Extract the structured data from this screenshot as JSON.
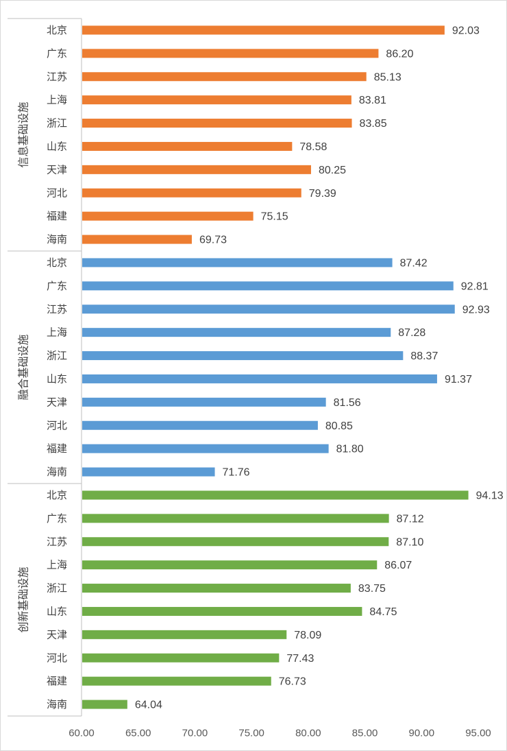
{
  "chart_data": {
    "type": "bar",
    "orientation": "horizontal",
    "xlim": [
      60,
      95
    ],
    "x_ticks": [
      "60.00",
      "65.00",
      "70.00",
      "75.00",
      "80.00",
      "85.00",
      "90.00",
      "95.00"
    ],
    "grid": false,
    "groups": [
      {
        "name": "信息基础设施",
        "color": "#ED7D31",
        "categories": [
          "北京",
          "广东",
          "江苏",
          "上海",
          "浙江",
          "山东",
          "天津",
          "河北",
          "福建",
          "海南"
        ],
        "values": [
          92.03,
          86.2,
          85.13,
          83.81,
          83.85,
          78.58,
          80.25,
          79.39,
          75.15,
          69.73
        ],
        "value_labels": [
          "92.03",
          "86.20",
          "85.13",
          "83.81",
          "83.85",
          "78.58",
          "80.25",
          "79.39",
          "75.15",
          "69.73"
        ]
      },
      {
        "name": "融合基础设施",
        "color": "#5B9BD5",
        "categories": [
          "北京",
          "广东",
          "江苏",
          "上海",
          "浙江",
          "山东",
          "天津",
          "河北",
          "福建",
          "海南"
        ],
        "values": [
          87.42,
          92.81,
          92.93,
          87.28,
          88.37,
          91.37,
          81.56,
          80.85,
          81.8,
          71.76
        ],
        "value_labels": [
          "87.42",
          "92.81",
          "92.93",
          "87.28",
          "88.37",
          "91.37",
          "81.56",
          "80.85",
          "81.80",
          "71.76"
        ]
      },
      {
        "name": "创新基础设施",
        "color": "#70AD47",
        "categories": [
          "北京",
          "广东",
          "江苏",
          "上海",
          "浙江",
          "山东",
          "天津",
          "河北",
          "福建",
          "海南"
        ],
        "values": [
          94.13,
          87.12,
          87.1,
          86.07,
          83.75,
          84.75,
          78.09,
          77.43,
          76.73,
          64.04
        ],
        "value_labels": [
          "94.13",
          "87.12",
          "87.10",
          "86.07",
          "83.75",
          "84.75",
          "78.09",
          "77.43",
          "76.73",
          "64.04"
        ]
      }
    ]
  }
}
